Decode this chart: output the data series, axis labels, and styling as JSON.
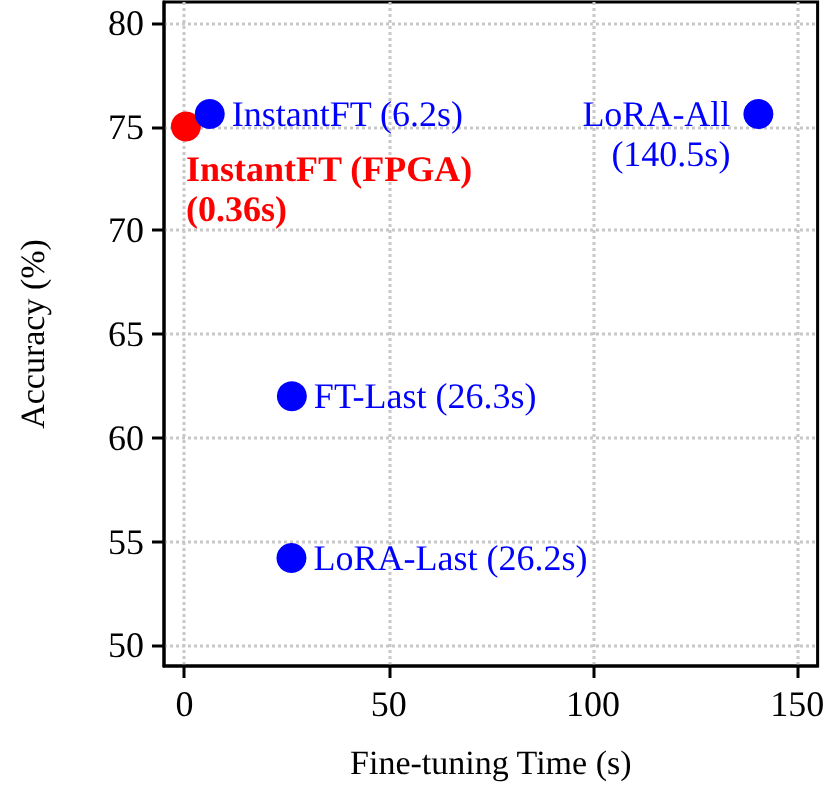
{
  "chart_data": {
    "type": "scatter",
    "xlabel": "Fine-tuning Time (s)",
    "ylabel": "Accuracy (%)",
    "series": [
      {
        "color": "#ff0000",
        "x": [
          0.36
        ],
        "values": [
          75
        ]
      },
      {
        "color": "#0000ff",
        "x": [
          6.2,
          140.5,
          26.3,
          26.2
        ],
        "values": [
          75.6,
          75.6,
          62,
          54.2
        ]
      }
    ],
    "annotations": [
      {
        "text": "InstantFT (6.2s)",
        "x": 6.2,
        "y": 75.6
      },
      {
        "text": "InstantFT (FPGA)\n(0.36s)",
        "x": 0.36,
        "y": 75
      },
      {
        "text": "LoRA-All\n(140.5s)",
        "x": 140.5,
        "y": 75.6
      },
      {
        "text": "FT-Last (26.3s)",
        "x": 26.3,
        "y": 62
      },
      {
        "text": "LoRA-Last (26.2s)",
        "x": 26.2,
        "y": 54.2
      }
    ],
    "xlim": [
      -5,
      155
    ],
    "xticks": [
      0,
      50,
      100,
      150
    ],
    "ylim": [
      49,
      81
    ],
    "yticks": [
      50,
      55,
      60,
      65,
      70,
      75,
      80
    ],
    "grid": true,
    "marker": "circle"
  }
}
